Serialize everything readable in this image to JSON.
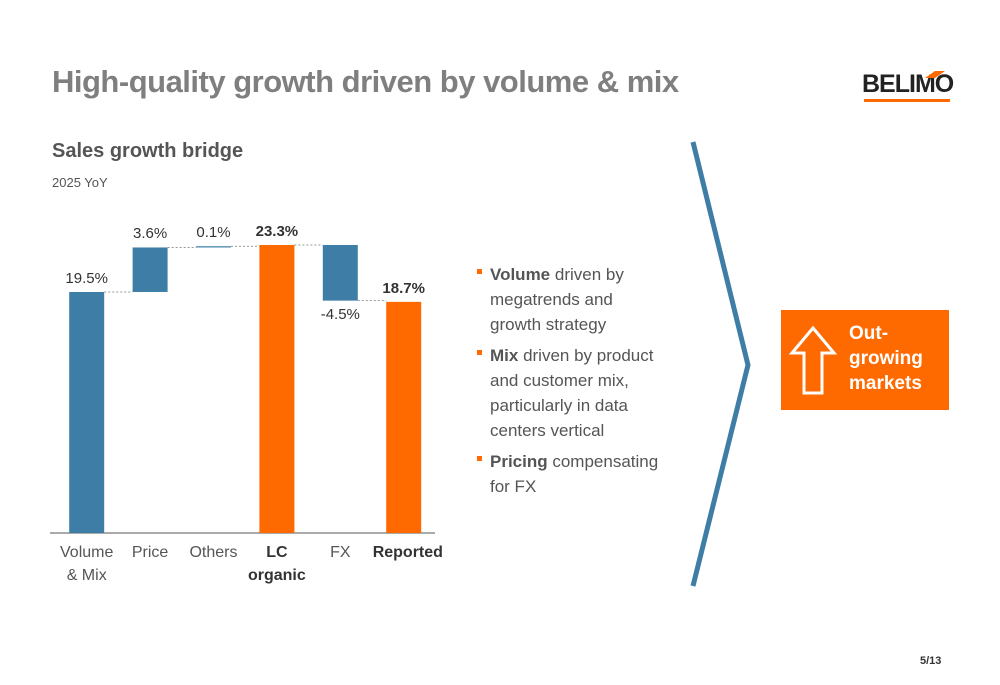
{
  "title": "High-quality growth driven by volume & mix",
  "logo": "BELIMO",
  "chart_data": {
    "type": "waterfall",
    "title": "Sales growth bridge",
    "subtitle": "2025 YoY",
    "categories": [
      "Volume & Mix",
      "Price",
      "Others",
      "LC organic",
      "FX",
      "Reported"
    ],
    "values": [
      19.5,
      3.6,
      0.1,
      23.3,
      -4.5,
      18.7
    ],
    "value_labels": [
      "19.5%",
      "3.6%",
      "0.1%",
      "23.3%",
      "-4.5%",
      "18.7%"
    ],
    "measure": [
      "relative",
      "relative",
      "relative",
      "total",
      "relative",
      "total"
    ],
    "colors": {
      "relative": "#3e7ea6",
      "total": "#ff6a00"
    }
  },
  "bullets": [
    {
      "bold": "Volume",
      "text": " driven by megatrends and growth strategy"
    },
    {
      "bold": "Mix",
      "text": " driven by product and customer mix, particularly in data centers vertical"
    },
    {
      "bold": "Pricing",
      "text": " compensating for FX"
    }
  ],
  "callout": "Out-growing markets",
  "page": "5/13"
}
